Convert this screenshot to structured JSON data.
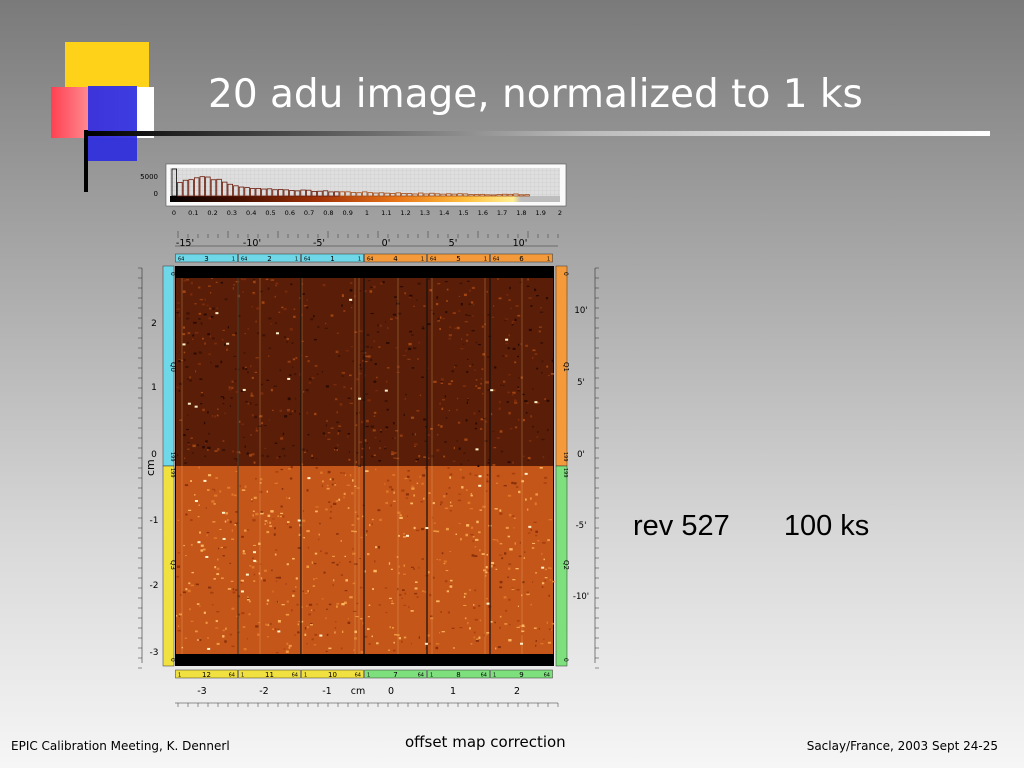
{
  "slide": {
    "title": "20 adu image, normalized to 1 ks",
    "caption": {
      "rev": "rev 527",
      "exposure": "100 ks"
    },
    "footer": {
      "left": "EPIC Calibration Meeting, K. Dennerl",
      "center": "offset map correction",
      "right": "Saclay/France, 2003 Sept 24-25"
    }
  },
  "figure": {
    "histogram": {
      "y_ticks": [
        "5000",
        "0"
      ],
      "x_ticks": [
        "0",
        "0.1",
        "0.2",
        "0.3",
        "0.4",
        "0.5",
        "0.6",
        "0.7",
        "0.8",
        "0.9",
        "1",
        "1.1",
        "1.2",
        "1.3",
        "1.4",
        "1.5",
        "1.6",
        "1.7",
        "1.8",
        "1.9",
        "2"
      ]
    },
    "top_angle_ticks": [
      "-15'",
      "-10'",
      "-5'",
      "0'",
      "5'",
      "10'"
    ],
    "right_angle_ticks": [
      "10'",
      "5'",
      "0'",
      "-5'",
      "-10'"
    ],
    "left_cm_ticks": [
      "2",
      "1",
      "0",
      "-1",
      "-2",
      "-3"
    ],
    "left_axis_label": "cm",
    "bottom_cm_ticks": [
      "-3",
      "-2",
      "-1",
      "cm",
      "0",
      "1",
      "2"
    ],
    "top_ccds": [
      {
        "left": "64",
        "number": "3",
        "right": "1",
        "color": "#6fd8e8"
      },
      {
        "left": "64",
        "number": "2",
        "right": "1",
        "color": "#6fd8e8"
      },
      {
        "left": "64",
        "number": "1",
        "right": "1",
        "color": "#6fd8e8"
      },
      {
        "left": "64",
        "number": "4",
        "right": "1",
        "color": "#f59a3a"
      },
      {
        "left": "64",
        "number": "5",
        "right": "1",
        "color": "#f59a3a"
      },
      {
        "left": "64",
        "number": "6",
        "right": "1",
        "color": "#f59a3a"
      }
    ],
    "bottom_ccds": [
      {
        "left": "1",
        "number": "12",
        "right": "64",
        "color": "#f0e040"
      },
      {
        "left": "1",
        "number": "11",
        "right": "64",
        "color": "#f0e040"
      },
      {
        "left": "1",
        "number": "10",
        "right": "64",
        "color": "#f0e040"
      },
      {
        "left": "1",
        "number": "7",
        "right": "64",
        "color": "#7de07d"
      },
      {
        "left": "1",
        "number": "8",
        "right": "64",
        "color": "#7de07d"
      },
      {
        "left": "1",
        "number": "9",
        "right": "64",
        "color": "#7de07d"
      }
    ],
    "quadrants": {
      "left_top": {
        "label": "Q0",
        "top": "0",
        "bottom": "199",
        "color": "#6fd8e8"
      },
      "left_bottom": {
        "label": "Q3",
        "top": "199",
        "bottom": "0",
        "color": "#f0e040"
      },
      "right_top": {
        "label": "Q1",
        "top": "0",
        "bottom": "199",
        "color": "#f59a3a"
      },
      "right_bottom": {
        "label": "Q2",
        "top": "199",
        "bottom": "0",
        "color": "#7de07d"
      }
    }
  },
  "icons": [
    "slide-corner-decoration"
  ]
}
